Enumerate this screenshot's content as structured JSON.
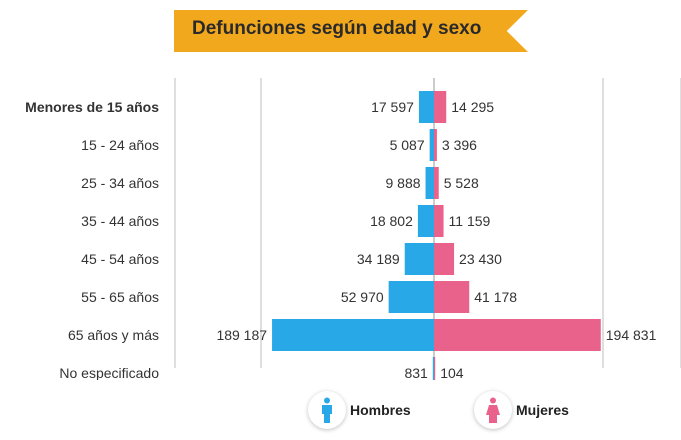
{
  "title": "Defunciones según edad y sexo",
  "colors": {
    "hombres": "#29a8e8",
    "mujeres": "#e8628c",
    "banner": "#f2a81d",
    "grid": "#bfbfbf"
  },
  "chart_data": {
    "type": "bar",
    "orientation": "horizontal-diverging",
    "title": "Defunciones según edad y sexo",
    "categories": [
      "Menores de 15 años",
      "15 - 24 años",
      "25 - 34 años",
      "35 - 44 años",
      "45 - 54 años",
      "55 - 65 años",
      "65 años y más",
      "No especificado"
    ],
    "series": [
      {
        "name": "Hombres",
        "side": "left",
        "values": [
          17597,
          5087,
          9888,
          18802,
          34189,
          52970,
          189187,
          831
        ],
        "labels": [
          "17 597",
          "5 087",
          "9 888",
          "18 802",
          "34 189",
          "52 970",
          "189 187",
          "831"
        ]
      },
      {
        "name": "Mujeres",
        "side": "right",
        "values": [
          14295,
          3396,
          5528,
          11159,
          23430,
          41178,
          194831,
          104
        ],
        "labels": [
          "14 295",
          "3 396",
          "5 528",
          "11 159",
          "23 430",
          "41 178",
          "194 831",
          "104"
        ]
      }
    ],
    "grid": true,
    "legend_position": "bottom"
  },
  "legend": {
    "hombres_label": "Hombres",
    "mujeres_label": "Mujeres"
  }
}
